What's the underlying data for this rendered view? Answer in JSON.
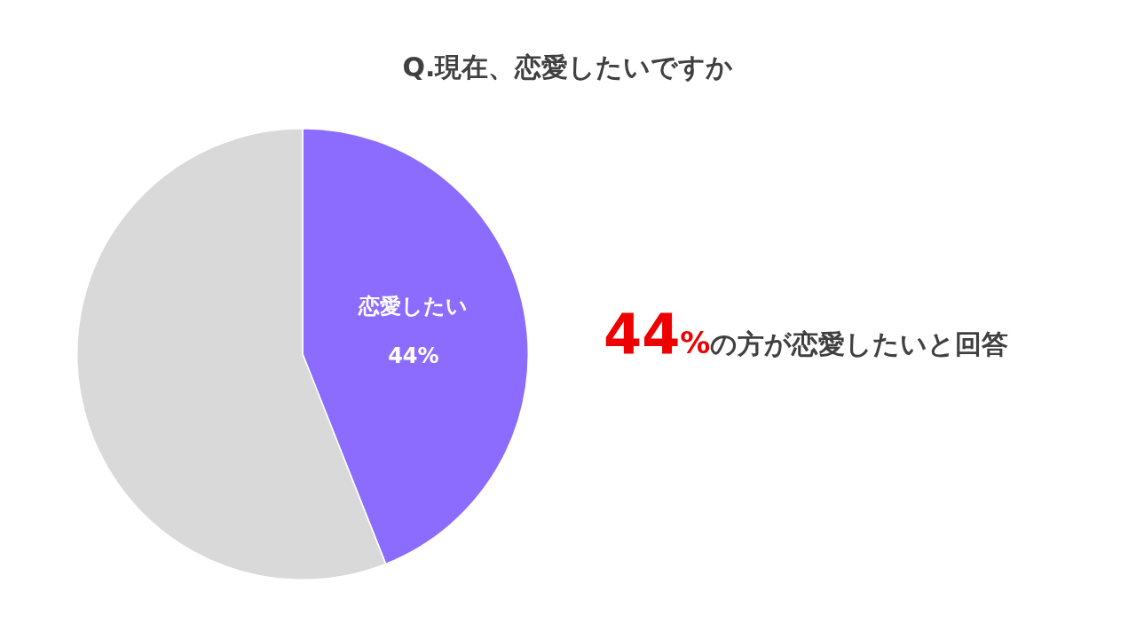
{
  "chart_data": {
    "type": "pie",
    "title": "Q.現在、恋愛したいですか",
    "categories": [
      "恋愛したい",
      null
    ],
    "values": [
      44,
      56
    ],
    "colors": [
      "#8c6cff",
      "#d9d9d9"
    ],
    "value_labels": [
      "44%",
      null
    ],
    "annotations": [
      "44%の方が恋愛したいと回答"
    ],
    "legend": false
  }
}
